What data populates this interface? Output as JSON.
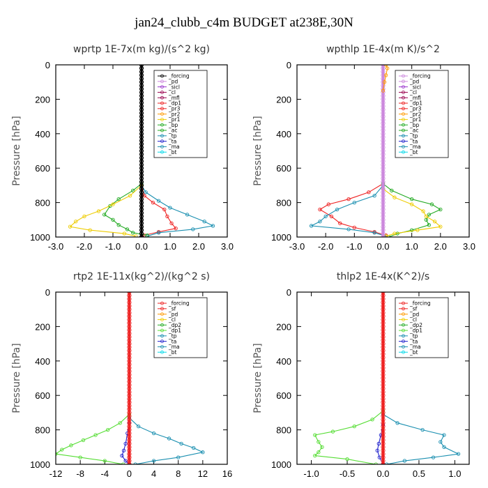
{
  "figure_title": "jan24_clubb_c4m  BUDGET at238E,30N",
  "colors": {
    "black": "#000000",
    "violet": "#cc88dd",
    "purple": "#9933cc",
    "darkred": "#99004d",
    "red": "#ee2222",
    "orange": "#ff9900",
    "yellow": "#eecc00",
    "green": "#22aa22",
    "lightgreen": "#55dd33",
    "teal": "#1a8fb0",
    "blue": "#2222cc",
    "cyan": "#00d8e8"
  },
  "chart_data": [
    {
      "type": "line",
      "title": "wprtp   1E-7x(m kg)/(s^2 kg)",
      "ylabel": "Pressure [hPa]",
      "xlim": [
        -3,
        3
      ],
      "ylim": [
        1000,
        0
      ],
      "xticks": [
        "-3.0",
        "-2.0",
        "-1.0",
        "0.0",
        "1.0",
        "2.0",
        "3.0"
      ],
      "yticks": [
        "0",
        "200",
        "400",
        "600",
        "800",
        "1000"
      ],
      "legend": [
        "_forcing",
        "_pd",
        "_sicl",
        "_cl",
        "_mfl",
        "_dp1",
        "_pr3",
        "_pr2",
        "_pr1",
        "_bp",
        "_ac",
        "_tp",
        "_ta",
        "_ma",
        "_bt"
      ],
      "legend_colors": [
        "black",
        "violet",
        "purple",
        "darkred",
        "darkred",
        "red",
        "red",
        "orange",
        "yellow",
        "green",
        "green",
        "teal",
        "blue",
        "teal",
        "cyan"
      ],
      "series": [
        {
          "color": "red",
          "points": [
            [
              0,
              700
            ],
            [
              0.1,
              760
            ],
            [
              0.4,
              800
            ],
            [
              0.8,
              840
            ],
            [
              0.9,
              880
            ],
            [
              1.05,
              920
            ],
            [
              1.2,
              950
            ],
            [
              0.6,
              970
            ],
            [
              0.1,
              990
            ],
            [
              0,
              1000
            ]
          ]
        },
        {
          "color": "teal",
          "points": [
            [
              0,
              700
            ],
            [
              0.15,
              740
            ],
            [
              0.6,
              790
            ],
            [
              1.0,
              830
            ],
            [
              1.6,
              870
            ],
            [
              2.2,
              910
            ],
            [
              2.5,
              935
            ],
            [
              1.8,
              955
            ],
            [
              0.6,
              975
            ],
            [
              0.2,
              995
            ]
          ]
        },
        {
          "color": "green",
          "points": [
            [
              0,
              690
            ],
            [
              -0.3,
              730
            ],
            [
              -0.8,
              780
            ],
            [
              -1.1,
              820
            ],
            [
              -1.3,
              870
            ],
            [
              -1.0,
              900
            ],
            [
              -0.8,
              930
            ],
            [
              -0.5,
              955
            ],
            [
              -0.3,
              975
            ],
            [
              0.2,
              990
            ]
          ]
        },
        {
          "color": "yellow",
          "points": [
            [
              0,
              700
            ],
            [
              -0.4,
              760
            ],
            [
              -1.0,
              810
            ],
            [
              -1.5,
              850
            ],
            [
              -2.0,
              880
            ],
            [
              -2.3,
              910
            ],
            [
              -2.5,
              940
            ],
            [
              -1.8,
              960
            ],
            [
              -0.6,
              980
            ],
            [
              -0.2,
              995
            ]
          ]
        },
        {
          "color": "black",
          "points": [
            [
              0,
              0
            ],
            [
              0,
              200
            ],
            [
              0,
              400
            ],
            [
              0,
              600
            ],
            [
              0,
              800
            ],
            [
              0,
              1000
            ]
          ]
        }
      ]
    },
    {
      "type": "line",
      "title": "wpthlp   1E-4x(m K)/s^2",
      "ylabel": "Pressure [hPa]",
      "xlim": [
        -3,
        3
      ],
      "ylim": [
        1000,
        0
      ],
      "xticks": [
        "-3.0",
        "-2.0",
        "-1.0",
        "0.0",
        "1.0",
        "2.0",
        "3.0"
      ],
      "yticks": [
        "0",
        "200",
        "400",
        "600",
        "800",
        "1000"
      ],
      "legend": [
        "_forcing",
        "_pd",
        "_sicl",
        "_cl",
        "_mfl",
        "_dp1",
        "_pr3",
        "_pr2",
        "_pr1",
        "_bp",
        "_ac",
        "_tp",
        "_ta",
        "_ma",
        "_bt"
      ],
      "legend_colors": [
        "violet",
        "violet",
        "purple",
        "darkred",
        "darkred",
        "red",
        "red",
        "orange",
        "yellow",
        "green",
        "green",
        "teal",
        "blue",
        "teal",
        "cyan"
      ],
      "series": [
        {
          "color": "red",
          "points": [
            [
              0,
              690
            ],
            [
              -0.5,
              740
            ],
            [
              -1.2,
              780
            ],
            [
              -1.9,
              810
            ],
            [
              -2.2,
              840
            ],
            [
              -1.8,
              880
            ],
            [
              -1.5,
              920
            ],
            [
              -1.0,
              945
            ],
            [
              -0.3,
              970
            ],
            [
              0.1,
              990
            ]
          ]
        },
        {
          "color": "teal",
          "points": [
            [
              0,
              700
            ],
            [
              -0.3,
              760
            ],
            [
              -1.0,
              800
            ],
            [
              -1.6,
              840
            ],
            [
              -2.0,
              880
            ],
            [
              -2.2,
              910
            ],
            [
              -2.5,
              935
            ],
            [
              -1.2,
              955
            ],
            [
              -0.3,
              975
            ],
            [
              0.1,
              995
            ]
          ]
        },
        {
          "color": "green",
          "points": [
            [
              0,
              690
            ],
            [
              0.3,
              730
            ],
            [
              1.0,
              780
            ],
            [
              1.7,
              810
            ],
            [
              2.0,
              840
            ],
            [
              1.6,
              870
            ],
            [
              1.5,
              900
            ],
            [
              1.6,
              930
            ],
            [
              1.0,
              960
            ],
            [
              0.5,
              980
            ],
            [
              0.2,
              1000
            ]
          ]
        },
        {
          "color": "yellow",
          "points": [
            [
              0,
              720
            ],
            [
              0.4,
              770
            ],
            [
              1.0,
              810
            ],
            [
              1.4,
              850
            ],
            [
              1.5,
              880
            ],
            [
              1.8,
              910
            ],
            [
              2.0,
              940
            ],
            [
              1.2,
              960
            ],
            [
              0.4,
              980
            ],
            [
              0.1,
              995
            ]
          ]
        },
        {
          "color": "violet",
          "points": [
            [
              0,
              0
            ],
            [
              0,
              200
            ],
            [
              0,
              400
            ],
            [
              0,
              600
            ],
            [
              0,
              800
            ],
            [
              0,
              1000
            ]
          ]
        },
        {
          "color": "orange",
          "points": [
            [
              0.1,
              0
            ],
            [
              0.15,
              20
            ],
            [
              0.1,
              60
            ],
            [
              0.05,
              100
            ],
            [
              0,
              150
            ]
          ]
        }
      ]
    },
    {
      "type": "line",
      "title": "rtp2   1E-11x(kg^2)/(kg^2 s)",
      "ylabel": "Pressure [hPa]",
      "xlim": [
        -12,
        16
      ],
      "ylim": [
        1000,
        0
      ],
      "xticks": [
        "-12",
        "-8",
        "-4",
        "0",
        "4",
        "8",
        "12",
        "16"
      ],
      "yticks": [
        "0",
        "200",
        "400",
        "600",
        "800",
        "1000"
      ],
      "legend": [
        "_forcing",
        "_sf",
        "_pd",
        "_cl",
        "_dp2",
        "_dp1",
        "_tp",
        "_ta",
        "_ma",
        "_bt"
      ],
      "legend_colors": [
        "red",
        "red",
        "orange",
        "yellow",
        "green",
        "lightgreen",
        "teal",
        "blue",
        "teal",
        "cyan"
      ],
      "series": [
        {
          "color": "lightgreen",
          "points": [
            [
              0,
              710
            ],
            [
              -1.5,
              760
            ],
            [
              -3.5,
              800
            ],
            [
              -5.5,
              830
            ],
            [
              -7.5,
              860
            ],
            [
              -9.5,
              890
            ],
            [
              -11,
              915
            ],
            [
              -12,
              940
            ],
            [
              -8,
              960
            ],
            [
              -4,
              980
            ],
            [
              -1,
              1000
            ]
          ]
        },
        {
          "color": "teal",
          "points": [
            [
              0,
              730
            ],
            [
              1.5,
              780
            ],
            [
              4,
              820
            ],
            [
              6.5,
              850
            ],
            [
              8.5,
              880
            ],
            [
              10.5,
              905
            ],
            [
              12,
              930
            ],
            [
              8,
              960
            ],
            [
              4,
              980
            ],
            [
              1,
              1000
            ]
          ]
        },
        {
          "color": "blue",
          "points": [
            [
              0,
              760
            ],
            [
              -0.3,
              820
            ],
            [
              -0.6,
              880
            ],
            [
              -0.9,
              920
            ],
            [
              -1.2,
              950
            ],
            [
              -0.6,
              980
            ],
            [
              0,
              1000
            ]
          ]
        },
        {
          "color": "red",
          "points": [
            [
              0,
              0
            ],
            [
              0,
              200
            ],
            [
              0,
              400
            ],
            [
              0,
              600
            ],
            [
              0,
              800
            ],
            [
              0,
              1000
            ]
          ]
        }
      ]
    },
    {
      "type": "line",
      "title": "thlp2   1E-4x(K^2)/s",
      "ylabel": "Pressure [hPa]",
      "xlim": [
        -1.2,
        1.2
      ],
      "ylim": [
        1000,
        0
      ],
      "xticks": [
        "-1.0",
        "-0.5",
        "0.0",
        "0.5",
        "1.0"
      ],
      "yticks": [
        "0",
        "200",
        "400",
        "600",
        "800",
        "1000"
      ],
      "legend": [
        "_forcing",
        "_sf",
        "_pd",
        "_cl",
        "_dp2",
        "_dp1",
        "_tp",
        "_ta",
        "_ma",
        "_bt"
      ],
      "legend_colors": [
        "red",
        "red",
        "orange",
        "yellow",
        "green",
        "lightgreen",
        "teal",
        "blue",
        "teal",
        "cyan"
      ],
      "series": [
        {
          "color": "lightgreen",
          "points": [
            [
              0,
              690
            ],
            [
              -0.15,
              740
            ],
            [
              -0.4,
              780
            ],
            [
              -0.7,
              810
            ],
            [
              -0.95,
              830
            ],
            [
              -0.9,
              870
            ],
            [
              -0.85,
              900
            ],
            [
              -0.9,
              930
            ],
            [
              -0.95,
              950
            ],
            [
              -0.5,
              970
            ],
            [
              -0.1,
              1000
            ]
          ]
        },
        {
          "color": "teal",
          "points": [
            [
              0,
              710
            ],
            [
              0.2,
              760
            ],
            [
              0.55,
              800
            ],
            [
              0.85,
              830
            ],
            [
              0.8,
              870
            ],
            [
              0.85,
              900
            ],
            [
              1.05,
              940
            ],
            [
              0.7,
              960
            ],
            [
              0.3,
              980
            ],
            [
              0.05,
              1000
            ]
          ]
        },
        {
          "color": "blue",
          "points": [
            [
              0,
              770
            ],
            [
              -0.03,
              830
            ],
            [
              -0.06,
              880
            ],
            [
              -0.08,
              920
            ],
            [
              -0.05,
              960
            ],
            [
              0,
              1000
            ]
          ]
        },
        {
          "color": "red",
          "points": [
            [
              0,
              0
            ],
            [
              0,
              200
            ],
            [
              0,
              400
            ],
            [
              0,
              600
            ],
            [
              0,
              800
            ],
            [
              0,
              1000
            ]
          ]
        }
      ]
    }
  ]
}
